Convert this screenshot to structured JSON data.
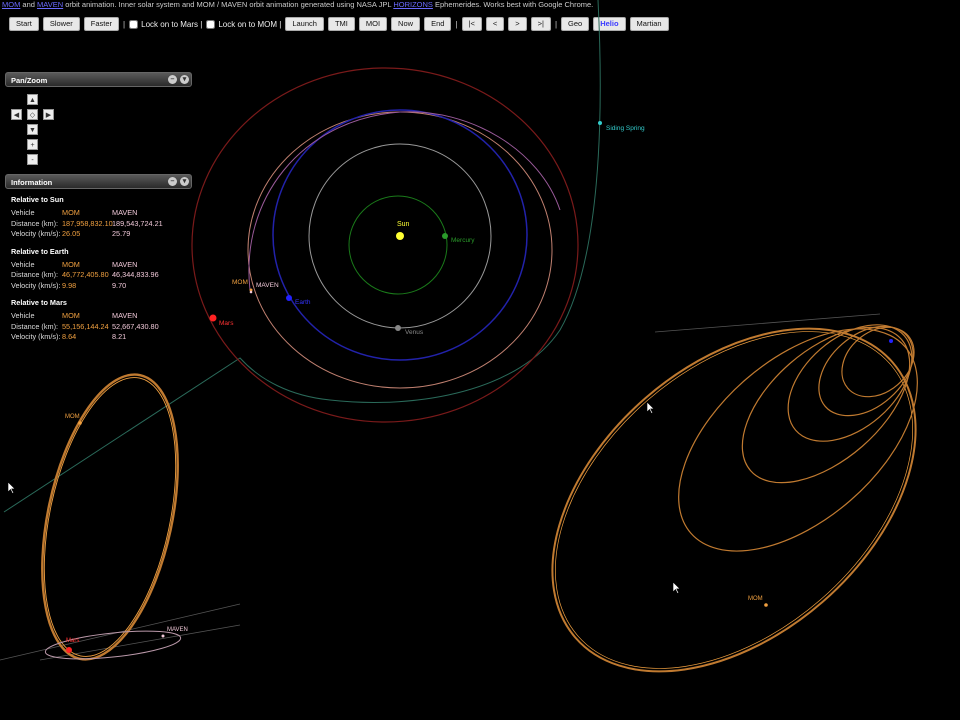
{
  "header": {
    "link_mom": "MOM",
    "and": " and ",
    "link_maven": "MAVEN",
    "text1": " orbit animation. Inner solar system and MOM / MAVEN orbit animation generated using NASA JPL ",
    "link_horizons": "HORIZONS",
    "text2": " Ephemerides. Works best with Google Chrome."
  },
  "toolbar": {
    "start": "Start",
    "slower": "Slower",
    "faster": "Faster",
    "sep": "|",
    "lock_mars": "Lock on to Mars |",
    "lock_mom": "Lock on to MOM |",
    "launch": "Launch",
    "tmi": "TMI",
    "moi": "MOI",
    "now": "Now",
    "end": "End",
    "first": "|<",
    "prev": "<",
    "next": ">",
    "last": ">|",
    "geo": "Geo",
    "helio": "Helio",
    "martian": "Martian"
  },
  "panzoom": {
    "title": "Pan/Zoom",
    "up": "▲",
    "down": "▼",
    "left": "◀",
    "right": "▶",
    "center": "◇",
    "zoom_in": "+",
    "zoom_out": "-"
  },
  "info": {
    "title": "Information",
    "vehicle_label": "Vehicle",
    "distance_label": "Distance (km):",
    "velocity_label": "Velocity (km/s):",
    "mom_label": "MOM",
    "maven_label": "MAVEN",
    "sun": {
      "heading": "Relative to Sun",
      "mom_distance": "187,958,832.10",
      "maven_distance": "189,543,724.21",
      "mom_velocity": "26.05",
      "maven_velocity": "25.79"
    },
    "earth": {
      "heading": "Relative to Earth",
      "mom_distance": "46,772,405.80",
      "maven_distance": "46,344,833.96",
      "mom_velocity": "9.98",
      "maven_velocity": "9.70"
    },
    "mars": {
      "heading": "Relative to Mars",
      "mom_distance": "55,156,144.24",
      "maven_distance": "52,667,430.80",
      "mom_velocity": "8.64",
      "maven_velocity": "8.21"
    }
  },
  "labels": {
    "sun": "Sun",
    "mercury": "Mercury",
    "venus": "Venus",
    "earth": "Earth",
    "mars": "Mars",
    "mom": "MOM",
    "maven": "MAVEN",
    "siding_spring": "Siding Spring",
    "mars_inset": "Mars",
    "mom_inset": "MOM",
    "maven_inset": "MAVEN",
    "mom_geo": "MOM"
  },
  "colors": {
    "sun": "#ffff33",
    "mercury": "#2a9a2a",
    "venus": "#888888",
    "earth": "#2222ff",
    "mars": "#ff2222",
    "mom": "#f0a040",
    "maven": "#f0c8d8",
    "comet": "#33cccc"
  }
}
